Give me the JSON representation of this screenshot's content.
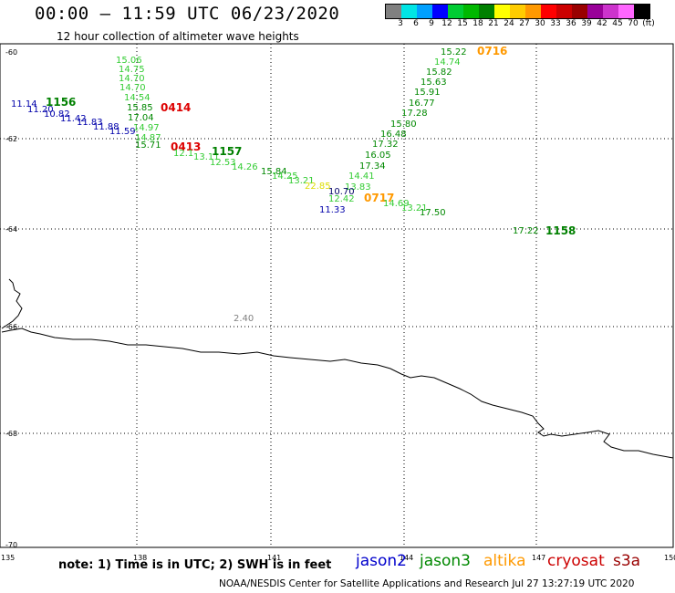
{
  "header": {
    "title": "00:00 – 11:59 UTC 06/23/2020",
    "subtitle": "12 hour collection of altimeter wave heights"
  },
  "colorbar": {
    "colors": [
      "#808080",
      "#00e5e5",
      "#00a0ff",
      "#0000ff",
      "#00cc33",
      "#00b800",
      "#008000",
      "#ffff00",
      "#ffcc00",
      "#ff9900",
      "#ff0000",
      "#cc0000",
      "#990000",
      "#990099",
      "#cc33cc",
      "#ff66ff",
      "#000000"
    ],
    "labels": [
      "3",
      "6",
      "9",
      "12",
      "15",
      "18",
      "21",
      "24",
      "27",
      "30",
      "33",
      "36",
      "39",
      "42",
      "45",
      "70",
      "(ft)"
    ]
  },
  "map": {
    "lat_labels": [
      "-60",
      "-62",
      "-64",
      "-66",
      "-68",
      "-70"
    ],
    "lon_labels": [
      "135",
      "138",
      "141",
      "144",
      "147",
      "150"
    ],
    "labels": [
      {
        "t": "11.14",
        "c": "#0000aa"
      },
      {
        "t": "1156",
        "c": "#008000",
        "b": true
      },
      {
        "t": "11.20",
        "c": "#0000aa"
      },
      {
        "t": "10.82",
        "c": "#0000aa"
      },
      {
        "t": "11.42",
        "c": "#0000aa"
      },
      {
        "t": "11.83",
        "c": "#0000aa"
      },
      {
        "t": "11.88",
        "c": "#0000aa"
      },
      {
        "t": "11.59",
        "c": "#0000aa"
      },
      {
        "t": "15.06",
        "c": "#33cc33"
      },
      {
        "t": "14.75",
        "c": "#33cc33"
      },
      {
        "t": "14.70",
        "c": "#33cc33"
      },
      {
        "t": "14.70",
        "c": "#33cc33"
      },
      {
        "t": "14.54",
        "c": "#33cc33"
      },
      {
        "t": "15.85",
        "c": "#008800"
      },
      {
        "t": "17.04",
        "c": "#008800"
      },
      {
        "t": "14.97",
        "c": "#33cc33"
      },
      {
        "t": "14.87",
        "c": "#33cc33"
      },
      {
        "t": "15.71",
        "c": "#008800"
      },
      {
        "t": "0414",
        "c": "#dd0000",
        "b": true
      },
      {
        "t": "0413",
        "c": "#dd0000",
        "b": true
      },
      {
        "t": "12.1",
        "c": "#33cc33"
      },
      {
        "t": "13.11",
        "c": "#33cc33"
      },
      {
        "t": "1157",
        "c": "#008000",
        "b": true
      },
      {
        "t": "12.53",
        "c": "#33cc33"
      },
      {
        "t": "14.26",
        "c": "#33cc33"
      },
      {
        "t": "15.84",
        "c": "#008800"
      },
      {
        "t": "14.25",
        "c": "#33cc33"
      },
      {
        "t": "13.21",
        "c": "#33cc33"
      },
      {
        "t": "22.85",
        "c": "#dddd00"
      },
      {
        "t": "15.22",
        "c": "#008800"
      },
      {
        "t": "0716",
        "c": "#ff9900",
        "b": true
      },
      {
        "t": "14.74",
        "c": "#33cc33"
      },
      {
        "t": "15.82",
        "c": "#008800"
      },
      {
        "t": "15.63",
        "c": "#008800"
      },
      {
        "t": "15.91",
        "c": "#008800"
      },
      {
        "t": "16.77",
        "c": "#008800"
      },
      {
        "t": "17.28",
        "c": "#008800"
      },
      {
        "t": "15.80",
        "c": "#008800"
      },
      {
        "t": "16.48",
        "c": "#008800"
      },
      {
        "t": "17.32",
        "c": "#008800"
      },
      {
        "t": "16.05",
        "c": "#008800"
      },
      {
        "t": "17.34",
        "c": "#008800"
      },
      {
        "t": "14.41",
        "c": "#33cc33"
      },
      {
        "t": "13.83",
        "c": "#33cc33"
      },
      {
        "t": "10.70",
        "c": "#000066"
      },
      {
        "t": "12.42",
        "c": "#33cc33"
      },
      {
        "t": "0717",
        "c": "#ff9900",
        "b": true
      },
      {
        "t": "14.69",
        "c": "#33cc33"
      },
      {
        "t": "13.21",
        "c": "#33cc33"
      },
      {
        "t": "11.33",
        "c": "#0000aa"
      },
      {
        "t": "17.50",
        "c": "#008800"
      },
      {
        "t": "17.22",
        "c": "#008800"
      },
      {
        "t": "1158",
        "c": "#008000",
        "b": true
      },
      {
        "t": "2.40",
        "c": "#808080"
      }
    ]
  },
  "footer": {
    "note": "note:  1) Time is in UTC;  2) SWH is in feet",
    "legend": [
      {
        "name": "jason2",
        "color": "#0000cc"
      },
      {
        "name": "jason3",
        "color": "#008800"
      },
      {
        "name": "altika",
        "color": "#ff9900"
      },
      {
        "name": "cryosat",
        "color": "#cc0000"
      },
      {
        "name": "s3a",
        "color": "#990000"
      }
    ],
    "credit": "NOAA/NESDIS Center for Satellite Applications and Research     Jul 27 13:27:19 UTC 2020"
  }
}
